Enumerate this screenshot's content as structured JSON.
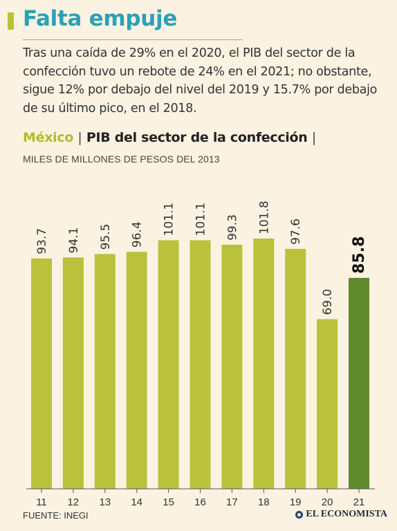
{
  "header": {
    "title": "Falta empuje",
    "intro": "Tras una caída de 29% en el 2020, el PIB del sector de la confección tuvo un rebote de 24% en el 2021; no obstante, sigue 12% por debajo del nivel del 2019 y 15.7% por debajo de su último pico, en el 2018."
  },
  "subheading": {
    "country": "México",
    "separator": "|",
    "series_title": "PIB del sector de la confección"
  },
  "footer": {
    "source": "FUENTE: INEGI",
    "brand": "EL ECONOMISTA"
  },
  "colors": {
    "accent_title": "#2aa1b7",
    "bar": "#b9c23a",
    "bar_highlight": "#5f8a2c",
    "country": "#b2bc28",
    "background": "#fbf2e1"
  },
  "chart_data": {
    "type": "bar",
    "title": "PIB del sector de la confección",
    "ylabel": "MILES DE MILLONES DE PESOS DEL 2013",
    "xlabel": "",
    "categories": [
      "11",
      "12",
      "13",
      "14",
      "15",
      "16",
      "17",
      "18",
      "19",
      "20",
      "21"
    ],
    "values": [
      93.7,
      94.1,
      95.5,
      96.4,
      101.1,
      101.1,
      99.3,
      101.8,
      97.6,
      69.0,
      85.8
    ],
    "value_labels": [
      "93.7",
      "94.1",
      "95.5",
      "96.4",
      "101.1",
      "101.1",
      "99.3",
      "101.8",
      "97.6",
      "69.0",
      "85.8"
    ],
    "highlight_index": 10,
    "ylim": [
      0,
      101.8
    ],
    "grid": false
  }
}
